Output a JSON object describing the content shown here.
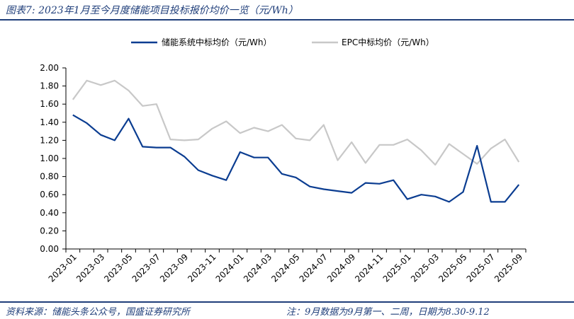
{
  "title": "图表7: 2023年1月至今月度储能项目投标报价均价一览（元/Wh）",
  "source": "资料来源：储能头条公众号，国盛证券研究所",
  "note": "注：9月数据为9月第一、二周，日期为8.30-9.12",
  "colors": {
    "series1": "#0b3d91",
    "series2": "#c8c8c8",
    "header": "#1f3e7a"
  },
  "chart_data": {
    "type": "line",
    "title": "图表7: 2023年1月至今月度储能项目投标报价均价一览（元/Wh）",
    "xlabel": "",
    "ylabel": "",
    "ylim": [
      0,
      2.0
    ],
    "yticks": [
      "0.00",
      "0.20",
      "0.40",
      "0.60",
      "0.80",
      "1.00",
      "1.20",
      "1.40",
      "1.60",
      "1.80",
      "2.00"
    ],
    "x": [
      "2023-01",
      "2023-02",
      "2023-03",
      "2023-04",
      "2023-05",
      "2023-06",
      "2023-07",
      "2023-08",
      "2023-09",
      "2023-10",
      "2023-11",
      "2023-12",
      "2024-01",
      "2024-02",
      "2024-03",
      "2024-04",
      "2024-05",
      "2024-06",
      "2024-07",
      "2024-08",
      "2024-09",
      "2024-10",
      "2024-11",
      "2024-12",
      "2025-01",
      "2025-02",
      "2025-03",
      "2025-04",
      "2025-05",
      "2025-06",
      "2025-07",
      "2025-08",
      "2025-09"
    ],
    "xtick_labels": [
      "2023-01",
      "2023-03",
      "2023-05",
      "2023-07",
      "2023-09",
      "2023-11",
      "2024-01",
      "2024-03",
      "2024-05",
      "2024-07",
      "2024-09",
      "2024-11",
      "2025-01",
      "2025-03",
      "2025-05",
      "2025-07",
      "2025-09"
    ],
    "legend_position": "top",
    "series": [
      {
        "name": "储能系统中标均价（元/Wh）",
        "values": [
          1.48,
          1.39,
          1.26,
          1.2,
          1.44,
          1.13,
          1.12,
          1.12,
          1.02,
          0.87,
          0.81,
          0.76,
          1.07,
          1.01,
          1.01,
          0.83,
          0.79,
          0.69,
          0.66,
          0.64,
          0.62,
          0.73,
          0.72,
          0.76,
          0.55,
          0.6,
          0.58,
          0.52,
          0.63,
          1.14,
          0.52,
          0.52,
          0.71
        ]
      },
      {
        "name": "EPC中标均价（元/Wh）",
        "values": [
          1.65,
          1.86,
          1.81,
          1.86,
          1.75,
          1.58,
          1.6,
          1.21,
          1.2,
          1.21,
          1.33,
          1.41,
          1.28,
          1.34,
          1.3,
          1.37,
          1.22,
          1.2,
          1.37,
          0.98,
          1.18,
          0.95,
          1.15,
          1.15,
          1.21,
          1.09,
          0.93,
          1.16,
          1.05,
          0.94,
          1.11,
          1.21,
          0.96
        ]
      }
    ]
  }
}
